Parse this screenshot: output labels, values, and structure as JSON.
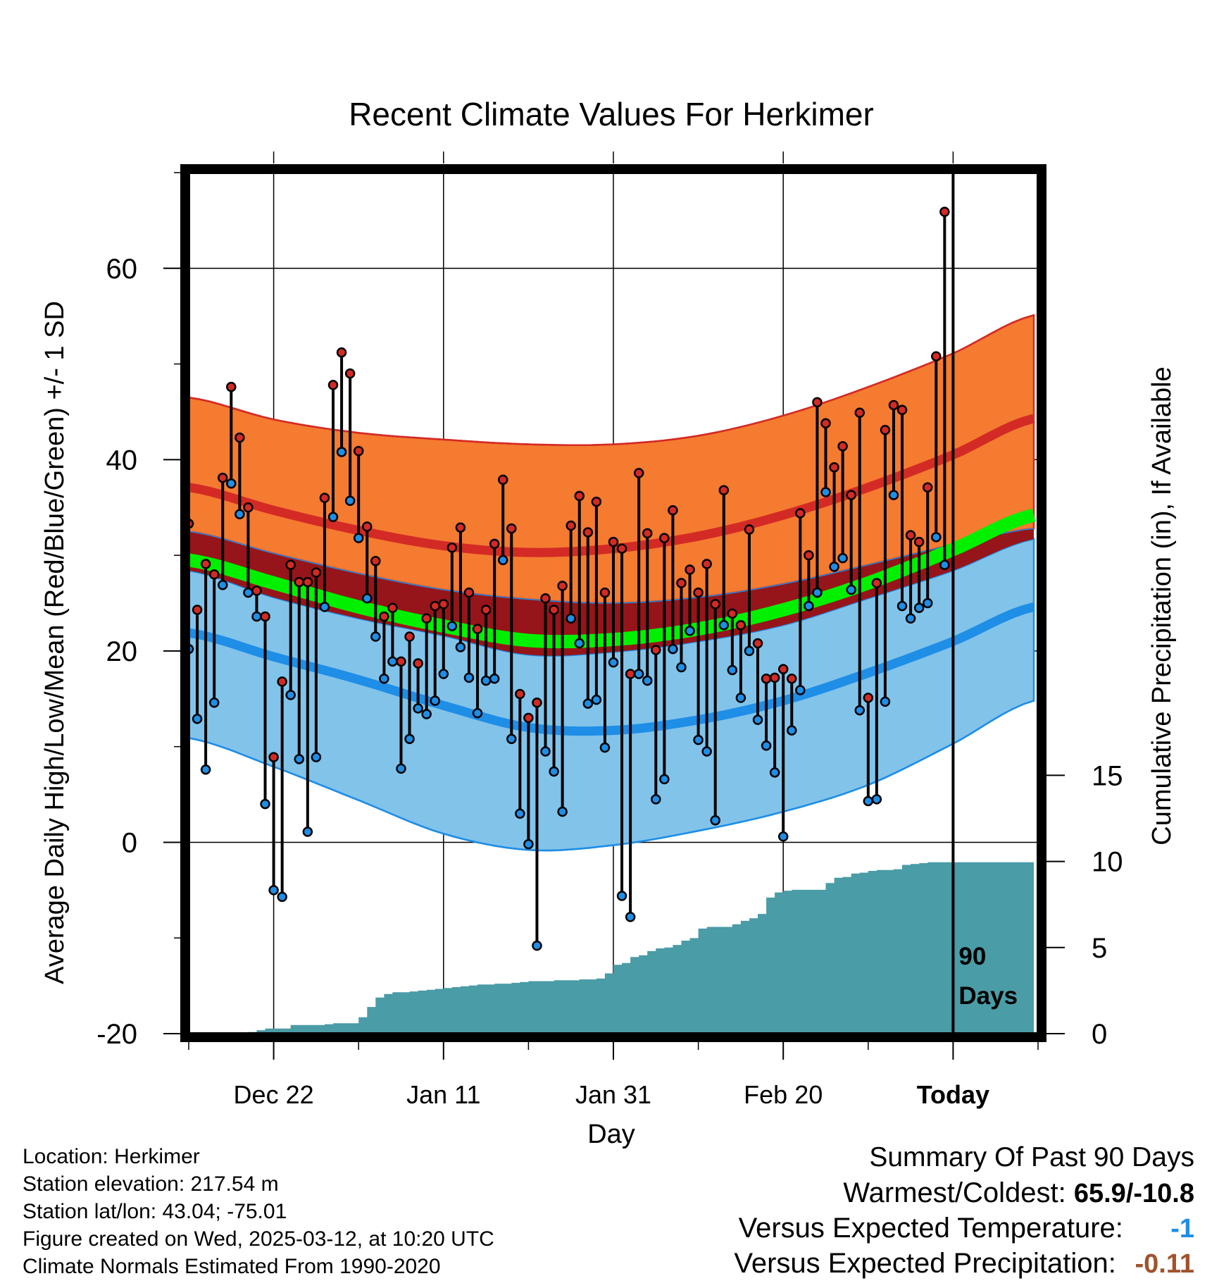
{
  "chart_data": {
    "type": "line",
    "title": "Recent Climate Values For Herkimer",
    "xlabel": "Day",
    "ylabel": "Average Daily High/Low/Mean (Red/Blue/Green) +/- 1 SD",
    "ylabel_right": "Cumulative Precipitation (in), If Available",
    "ylim": [
      -20,
      70
    ],
    "ylim_right": [
      0,
      50
    ],
    "xlim": [
      0,
      100
    ],
    "yticks": [
      "60",
      "40",
      "20",
      "0",
      "-20"
    ],
    "yticks_right": [
      "15",
      "10",
      "5",
      "0"
    ],
    "xtick_positions": [
      10,
      30,
      50,
      70,
      90
    ],
    "xtick_labels": [
      "Dec 22",
      "Jan 11",
      "Jan 31",
      "Feb 20",
      "Today"
    ],
    "today_marker": {
      "x": 90,
      "label_line1": "90",
      "label_line2": "Days"
    },
    "grid": true,
    "colors": {
      "high_band": "#f47b30",
      "high_line": "#d42a25",
      "low_band": "#82c3ea",
      "low_line": "#1e8ee6",
      "overlap_band": "#96151a",
      "mean_line": "#00f000",
      "precip": "#4a9ca6",
      "high_point": "#d42a25",
      "low_point": "#1e8ee6"
    },
    "normals_x": [
      0,
      10,
      20,
      30,
      40,
      50,
      60,
      70,
      80,
      90,
      99.5
    ],
    "normal_high": [
      37.1,
      34.7,
      32.6,
      31.0,
      30.3,
      30.7,
      32.0,
      34.2,
      37.1,
      40.5,
      44.3
    ],
    "high_sd_upper": [
      46.5,
      44.2,
      42.8,
      42.1,
      41.6,
      41.6,
      42.5,
      44.6,
      47.6,
      51.1,
      55.1
    ],
    "high_sd_lower": [
      32.5,
      30.2,
      28.1,
      26.4,
      25.4,
      25.0,
      25.6,
      27.0,
      29.0,
      31.1,
      32.8
    ],
    "normal_low": [
      21.9,
      19.4,
      17.0,
      14.3,
      12.0,
      11.7,
      12.8,
      14.8,
      17.7,
      21.0,
      24.6
    ],
    "low_sd_upper": [
      28.4,
      25.6,
      23.4,
      21.6,
      19.6,
      19.9,
      21.0,
      22.7,
      25.5,
      28.4,
      31.7
    ],
    "low_sd_lower": [
      10.9,
      7.9,
      4.4,
      0.9,
      -0.8,
      -0.3,
      1.2,
      3.2,
      6.0,
      10.3,
      14.8
    ],
    "normal_mean": [
      29.5,
      27.1,
      24.6,
      22.6,
      21.1,
      21.2,
      22.3,
      24.3,
      27.1,
      30.6,
      34.2
    ],
    "series": [
      {
        "name": "High",
        "x": [
          0,
          1,
          2,
          3,
          4,
          5,
          6,
          7,
          8,
          9,
          10,
          11,
          12,
          13,
          14,
          15,
          16,
          17,
          18,
          19,
          20,
          21,
          22,
          23,
          24,
          25,
          26,
          27,
          28,
          29,
          30,
          31,
          32,
          33,
          34,
          35,
          36,
          37,
          38,
          39,
          40,
          41,
          42,
          43,
          44,
          45,
          46,
          47,
          48,
          49,
          50,
          51,
          52,
          53,
          54,
          55,
          56,
          57,
          58,
          59,
          60,
          61,
          62,
          63,
          64,
          65,
          66,
          67,
          68,
          69,
          70,
          71,
          72,
          73,
          74,
          75,
          76,
          77,
          78,
          79,
          80,
          81,
          82,
          83,
          84,
          85,
          86,
          87,
          88,
          89
        ],
        "values": [
          33.3,
          24.3,
          29.1,
          28.0,
          38.1,
          47.6,
          42.3,
          35.0,
          26.3,
          23.6,
          8.9,
          16.8,
          29.0,
          27.2,
          27.2,
          28.2,
          36.0,
          47.8,
          51.2,
          49.0,
          40.9,
          33.0,
          29.4,
          23.6,
          24.5,
          18.9,
          21.5,
          18.7,
          23.4,
          24.7,
          24.9,
          30.8,
          32.9,
          26.1,
          22.3,
          24.3,
          31.2,
          37.9,
          32.8,
          15.5,
          13.0,
          14.6,
          25.5,
          24.3,
          26.8,
          33.1,
          36.2,
          32.4,
          35.6,
          26.1,
          31.4,
          30.7,
          17.6,
          38.6,
          32.3,
          20.1,
          31.8,
          34.7,
          27.1,
          28.5,
          26.1,
          29.1,
          24.9,
          36.8,
          23.9,
          22.7,
          32.7,
          20.8,
          17.1,
          17.2,
          18.1,
          17.1,
          34.4,
          30.0,
          46.0,
          43.8,
          39.2,
          41.4,
          36.3,
          44.9,
          15.1,
          27.1,
          43.1,
          45.7,
          45.2,
          32.1,
          31.4,
          37.1,
          50.8,
          65.9
        ]
      },
      {
        "name": "Low",
        "x": [
          0,
          1,
          2,
          3,
          4,
          5,
          6,
          7,
          8,
          9,
          10,
          11,
          12,
          13,
          14,
          15,
          16,
          17,
          18,
          19,
          20,
          21,
          22,
          23,
          24,
          25,
          26,
          27,
          28,
          29,
          30,
          31,
          32,
          33,
          34,
          35,
          36,
          37,
          38,
          39,
          40,
          41,
          42,
          43,
          44,
          45,
          46,
          47,
          48,
          49,
          50,
          51,
          52,
          53,
          54,
          55,
          56,
          57,
          58,
          59,
          60,
          61,
          62,
          63,
          64,
          65,
          66,
          67,
          68,
          69,
          70,
          71,
          72,
          73,
          74,
          75,
          76,
          77,
          78,
          79,
          80,
          81,
          82,
          83,
          84,
          85,
          86,
          87,
          88,
          89
        ],
        "values": [
          20.2,
          12.9,
          7.6,
          14.6,
          26.9,
          37.5,
          34.3,
          26.1,
          23.6,
          4.0,
          -5.0,
          -5.7,
          15.4,
          8.7,
          1.1,
          8.9,
          24.6,
          34.0,
          40.8,
          35.7,
          31.8,
          25.5,
          21.5,
          17.1,
          18.9,
          7.7,
          10.8,
          14.0,
          13.4,
          14.8,
          17.6,
          22.6,
          20.4,
          17.2,
          13.5,
          16.9,
          17.1,
          29.5,
          10.8,
          3.0,
          -0.2,
          -10.8,
          9.5,
          7.4,
          3.2,
          23.4,
          20.8,
          14.5,
          14.9,
          9.9,
          18.8,
          -5.6,
          -7.8,
          17.6,
          16.9,
          4.5,
          6.6,
          20.2,
          18.3,
          22.1,
          10.7,
          9.5,
          2.3,
          22.7,
          18.0,
          15.1,
          20.0,
          12.8,
          10.1,
          7.3,
          0.6,
          11.7,
          15.9,
          24.7,
          26.1,
          36.6,
          28.8,
          29.7,
          26.4,
          13.8,
          4.3,
          4.5,
          14.7,
          36.3,
          24.7,
          23.4,
          24.5,
          25.0,
          31.9,
          29.0
        ]
      },
      {
        "name": "Cumulative Precipitation",
        "x": [
          5,
          6,
          7,
          8,
          9,
          10,
          11,
          12,
          13,
          14,
          15,
          16,
          17,
          18,
          19,
          20,
          21,
          22,
          23,
          24,
          25,
          26,
          27,
          28,
          29,
          30,
          31,
          32,
          33,
          34,
          35,
          36,
          37,
          38,
          39,
          40,
          41,
          42,
          43,
          44,
          45,
          46,
          47,
          48,
          49,
          50,
          51,
          52,
          53,
          54,
          55,
          56,
          57,
          58,
          59,
          60,
          61,
          62,
          63,
          64,
          65,
          66,
          67,
          68,
          69,
          70,
          71,
          72,
          73,
          74,
          75,
          76,
          77,
          78,
          79,
          80,
          81,
          82,
          83,
          84,
          85,
          86,
          87,
          88,
          89,
          90,
          91,
          92,
          93,
          94,
          95,
          96,
          97,
          98,
          99.5
        ],
        "values": [
          0,
          0.05,
          0.1,
          0.2,
          0.3,
          0.3,
          0.3,
          0.5,
          0.5,
          0.5,
          0.5,
          0.55,
          0.6,
          0.6,
          0.6,
          0.95,
          1.55,
          2.1,
          2.3,
          2.4,
          2.4,
          2.45,
          2.5,
          2.55,
          2.6,
          2.65,
          2.7,
          2.75,
          2.8,
          2.85,
          2.85,
          2.9,
          2.9,
          2.95,
          3.0,
          3.05,
          3.05,
          3.05,
          3.1,
          3.1,
          3.1,
          3.15,
          3.15,
          3.2,
          3.5,
          4.0,
          4.1,
          4.45,
          4.55,
          4.8,
          4.95,
          5.0,
          5.15,
          5.4,
          5.55,
          6.1,
          6.2,
          6.2,
          6.2,
          6.35,
          6.55,
          6.7,
          6.95,
          7.9,
          8.2,
          8.3,
          8.35,
          8.35,
          8.35,
          8.35,
          8.75,
          9.05,
          9.1,
          9.3,
          9.35,
          9.45,
          9.5,
          9.5,
          9.55,
          9.8,
          9.85,
          9.9,
          9.95,
          9.95,
          9.95,
          9.95,
          9.95,
          9.95,
          9.95,
          9.95,
          9.95,
          9.95,
          9.95,
          9.95,
          9.95
        ]
      }
    ]
  },
  "info": {
    "location": "Location: Herkimer",
    "elevation": "Station elevation: 217.54 m",
    "latlon": "Station lat/lon: 43.04; -75.01",
    "created": "Figure created on Wed, 2025-03-12, at 10:20 UTC",
    "normals": "Climate Normals Estimated From 1990-2020"
  },
  "summary": {
    "heading": "Summary Of Past 90 Days",
    "warmest_label": "Warmest/Coldest:",
    "warmest_value": "65.9/-10.8",
    "temp_label": "Versus Expected Temperature:",
    "temp_value": "-1",
    "precip_label": "Versus Expected Precipitation:",
    "precip_value": "-0.11"
  }
}
